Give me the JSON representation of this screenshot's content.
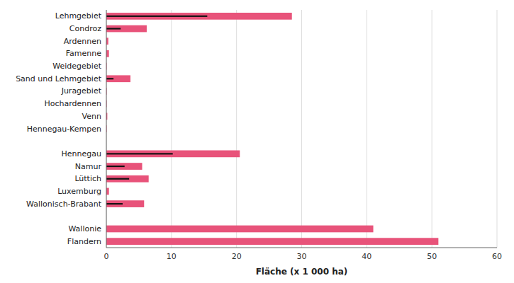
{
  "chart_data": {
    "type": "bar",
    "orientation": "horizontal",
    "categories": [
      "Lehmgebiet",
      "Condroz",
      "Ardennen",
      "Famenne",
      "Weidegebiet",
      "Sand und Lehmgebiet",
      "Juragebiet",
      "Hochardennen",
      "Venn",
      "Hennegau-Kempen",
      null,
      "Hennegau",
      "Namur",
      "Lüttich",
      "Luxemburg",
      "Wallonisch-Brabant",
      null,
      "Wallonie",
      "Flandern"
    ],
    "series": [
      {
        "color": "#e8537a",
        "values": [
          28.5,
          6.2,
          0.3,
          0.4,
          0.05,
          3.7,
          0.05,
          0.05,
          0.15,
          0.05,
          0,
          20.5,
          5.5,
          6.5,
          0.4,
          5.8,
          0,
          41.0,
          51.0
        ]
      },
      {
        "color": "#111111",
        "values": [
          15.5,
          2.2,
          0,
          0,
          0,
          1.1,
          0,
          0,
          0,
          0,
          0,
          10.2,
          2.8,
          3.5,
          0,
          2.5,
          0,
          0,
          0
        ]
      }
    ],
    "xlabel": "Fläche (x 1 000 ha)",
    "xlim": [
      0,
      60
    ],
    "xticks": [
      0,
      10,
      20,
      30,
      40,
      50,
      60
    ],
    "grid": true
  }
}
